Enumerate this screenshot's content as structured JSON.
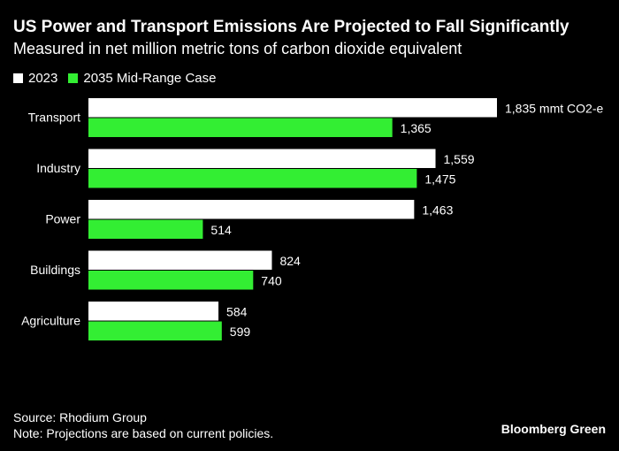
{
  "title": "US Power and Transport Emissions Are Projected to Fall Significantly",
  "subtitle": "Measured in net million metric tons of carbon dioxide equivalent",
  "colors": {
    "series_2023": "#ffffff",
    "series_2035": "#33ee33"
  },
  "chart_data": {
    "type": "bar",
    "orientation": "horizontal",
    "categories": [
      "Transport",
      "Industry",
      "Power",
      "Buildings",
      "Agriculture"
    ],
    "series": [
      {
        "name": "2023",
        "values": [
          1835,
          1559,
          1463,
          824,
          584
        ],
        "labels": [
          "1,835 mmt CO2-e",
          "1,559",
          "1,463",
          "824",
          "584"
        ]
      },
      {
        "name": "2035 Mid-Range Case",
        "values": [
          1365,
          1475,
          514,
          740,
          599
        ],
        "labels": [
          "1,365",
          "1,475",
          "514",
          "740",
          "599"
        ]
      }
    ],
    "xlim": [
      0,
      1835
    ],
    "legend": "top-left"
  },
  "footer": {
    "source": "Source: Rhodium Group",
    "note": "Note: Projections are based on current policies."
  },
  "brand": "Bloomberg Green"
}
